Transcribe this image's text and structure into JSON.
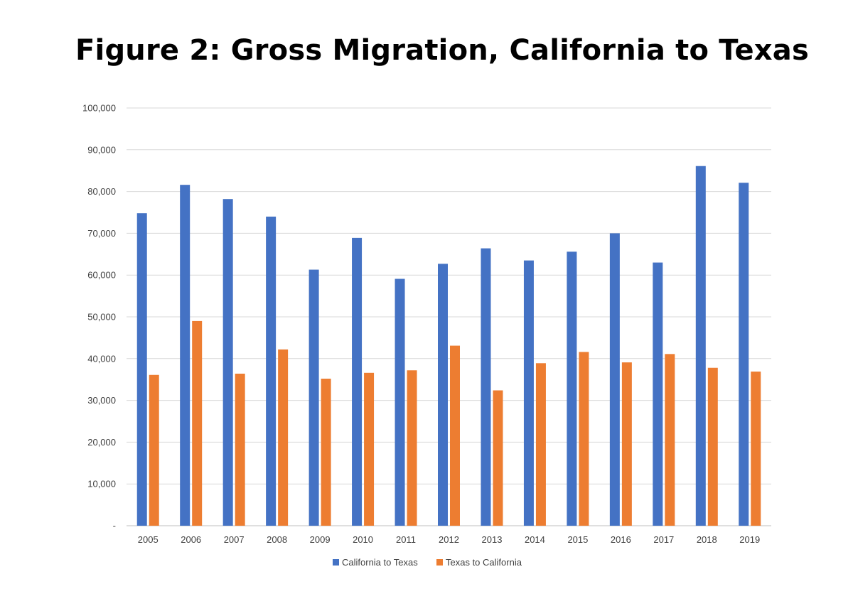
{
  "chart_data": {
    "type": "bar",
    "title": "Figure 2: Gross Migration, California to Texas",
    "xlabel": "",
    "ylabel": "",
    "ylim": [
      0,
      100000
    ],
    "y_ticks": [
      0,
      10000,
      20000,
      30000,
      40000,
      50000,
      60000,
      70000,
      80000,
      90000,
      100000
    ],
    "y_tick_labels": [
      "-",
      "10,000",
      "20,000",
      "30,000",
      "40,000",
      "50,000",
      "60,000",
      "70,000",
      "80,000",
      "90,000",
      "100,000"
    ],
    "grid": true,
    "legend_position": "bottom",
    "categories": [
      "2005",
      "2006",
      "2007",
      "2008",
      "2009",
      "2010",
      "2011",
      "2012",
      "2013",
      "2014",
      "2015",
      "2016",
      "2017",
      "2018",
      "2019"
    ],
    "series": [
      {
        "name": "California to Texas",
        "color": "#4472C4",
        "values": [
          74800,
          81600,
          78200,
          74000,
          61300,
          68900,
          59100,
          62700,
          66400,
          63500,
          65600,
          70000,
          63000,
          86100,
          82100
        ]
      },
      {
        "name": "Texas to California",
        "color": "#ED7D31",
        "values": [
          36100,
          49000,
          36400,
          42200,
          35200,
          36600,
          37200,
          43100,
          32400,
          38900,
          41600,
          39100,
          41100,
          37800,
          36900
        ]
      }
    ]
  }
}
